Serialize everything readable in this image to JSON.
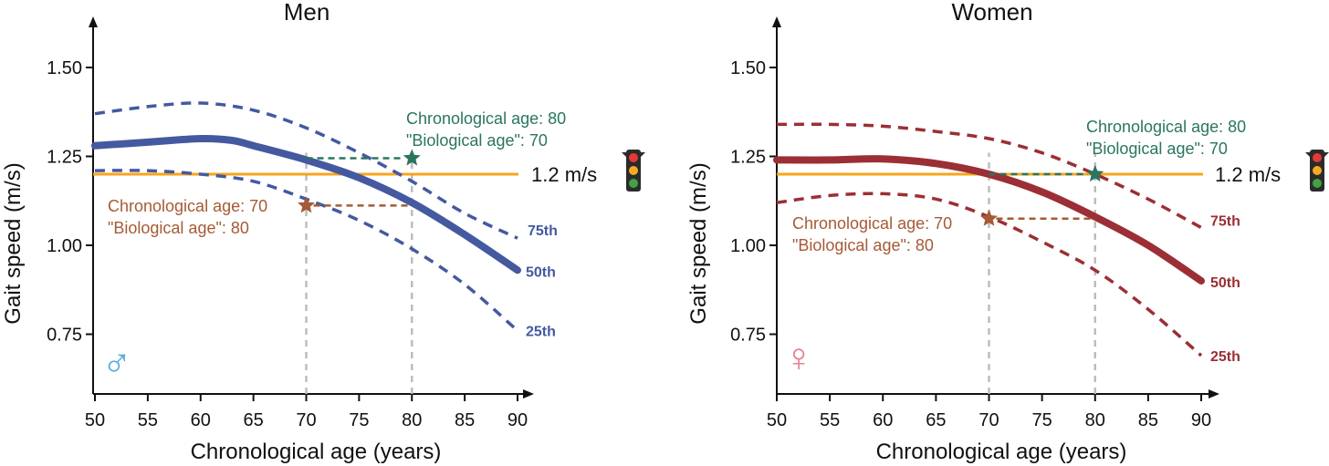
{
  "chart_data": [
    {
      "type": "line",
      "title": "Men",
      "xlabel": "Chronological age (years)",
      "ylabel": "Gait speed (m/s)",
      "xlim": [
        50,
        90
      ],
      "ylim": [
        0.59,
        1.66
      ],
      "xticks": [
        50,
        55,
        60,
        65,
        70,
        75,
        80,
        85,
        90
      ],
      "xtick_labels": [
        "50",
        "55",
        "60",
        "65",
        "70",
        "75",
        "80",
        "85",
        "90"
      ],
      "yticks": [
        0.75,
        1.0,
        1.25,
        1.5
      ],
      "ytick_labels": [
        "0.75",
        "1.00",
        "1.25",
        "1.50"
      ],
      "color": "#4459a0",
      "symbol_color": "#5aaad8",
      "symbol": "♂",
      "series": [
        {
          "name": "75th",
          "style": "dashed",
          "x": [
            50,
            55,
            60,
            65,
            70,
            75,
            80,
            85,
            90
          ],
          "y": [
            1.37,
            1.39,
            1.4,
            1.38,
            1.33,
            1.26,
            1.18,
            1.09,
            1.02
          ]
        },
        {
          "name": "50th",
          "style": "solid",
          "x": [
            50,
            55,
            60,
            63,
            65,
            70,
            75,
            80,
            85,
            90
          ],
          "y": [
            1.28,
            1.29,
            1.3,
            1.295,
            1.28,
            1.24,
            1.19,
            1.12,
            1.03,
            0.93
          ]
        },
        {
          "name": "25th",
          "style": "dashed",
          "x": [
            50,
            55,
            60,
            65,
            70,
            75,
            80,
            85,
            90
          ],
          "y": [
            1.21,
            1.21,
            1.2,
            1.18,
            1.13,
            1.07,
            0.99,
            0.89,
            0.76
          ]
        }
      ],
      "reference_line": {
        "y": 1.2,
        "label": "1.2 m/s",
        "color": "#f7a51c"
      },
      "annotations": [
        {
          "lines": [
            "Chronological age: 80",
            "\"Biological age\": 70"
          ],
          "color": "#2a7560",
          "star": [
            80,
            1.245
          ],
          "from": [
            70,
            1.245
          ]
        },
        {
          "lines": [
            "Chronological age: 70",
            "\"Biological age\": 80"
          ],
          "color": "#a65a35",
          "star": [
            70,
            1.112
          ],
          "to": [
            80,
            1.112
          ]
        }
      ],
      "vlines": [
        70,
        80
      ]
    },
    {
      "type": "line",
      "title": "Women",
      "xlabel": "Chronological age (years)",
      "ylabel": "Gait speed (m/s)",
      "xlim": [
        50,
        90
      ],
      "ylim": [
        0.59,
        1.66
      ],
      "xticks": [
        50,
        55,
        60,
        65,
        70,
        75,
        80,
        85,
        90
      ],
      "xtick_labels": [
        "50",
        "55",
        "60",
        "65",
        "70",
        "75",
        "80",
        "85",
        "90"
      ],
      "yticks": [
        0.75,
        1.0,
        1.25,
        1.5
      ],
      "ytick_labels": [
        "0.75",
        "1.00",
        "1.25",
        "1.50"
      ],
      "color": "#9b2f35",
      "symbol_color": "#e87f8c",
      "symbol": "♀",
      "series": [
        {
          "name": "75th",
          "style": "dashed",
          "x": [
            50,
            55,
            60,
            65,
            70,
            75,
            80,
            85,
            90
          ],
          "y": [
            1.34,
            1.34,
            1.335,
            1.32,
            1.3,
            1.26,
            1.2,
            1.13,
            1.05
          ]
        },
        {
          "name": "50th",
          "style": "solid",
          "x": [
            50,
            55,
            60,
            65,
            70,
            75,
            80,
            85,
            90
          ],
          "y": [
            1.24,
            1.24,
            1.243,
            1.23,
            1.2,
            1.15,
            1.08,
            1.0,
            0.9
          ]
        },
        {
          "name": "25th",
          "style": "dashed",
          "x": [
            50,
            55,
            60,
            65,
            70,
            75,
            80,
            85,
            90
          ],
          "y": [
            1.12,
            1.14,
            1.145,
            1.13,
            1.08,
            1.01,
            0.93,
            0.82,
            0.69
          ]
        }
      ],
      "reference_line": {
        "y": 1.2,
        "label": "1.2 m/s",
        "color": "#f7a51c"
      },
      "annotations": [
        {
          "lines": [
            "Chronological age: 80",
            "\"Biological age\": 70"
          ],
          "color": "#2a7560",
          "star": [
            80,
            1.2
          ],
          "from": [
            70,
            1.2
          ]
        },
        {
          "lines": [
            "Chronological age: 70",
            "\"Biological age\": 80"
          ],
          "color": "#a65a35",
          "star": [
            70,
            1.075
          ],
          "to": [
            80,
            1.075
          ]
        }
      ],
      "vlines": [
        70,
        80
      ]
    }
  ]
}
